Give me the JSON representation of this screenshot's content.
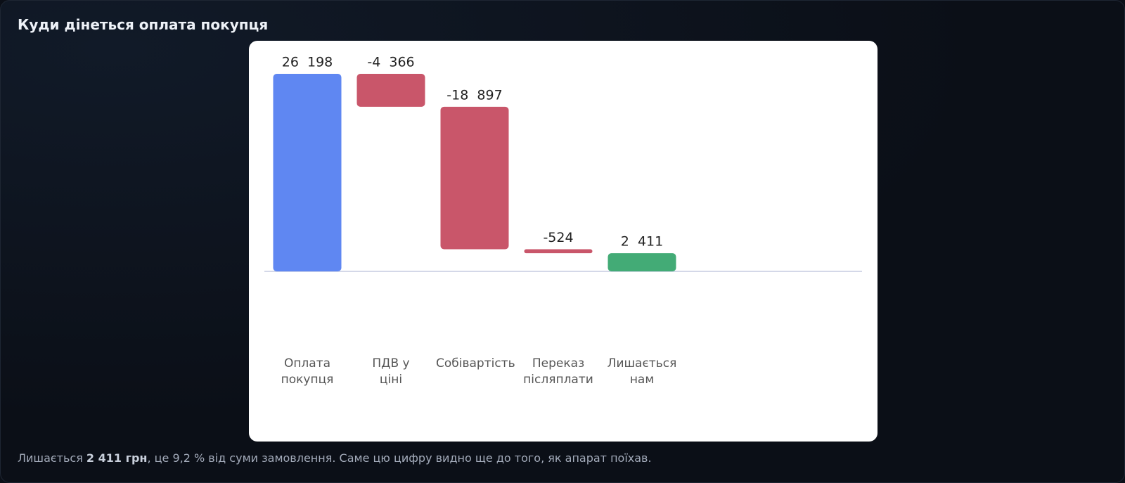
{
  "header": {
    "title": "Куди дінеться оплата покупця"
  },
  "chart_data": {
    "type": "waterfall",
    "categories": [
      "Оплата покупця",
      "ПДВ у ціні",
      "Собівартість",
      "Переказ післяплати",
      "Лишається нам"
    ],
    "values": [
      26198,
      -4366,
      -18897,
      -524,
      2411
    ],
    "value_labels": [
      "26  198",
      "-4  366",
      "-18  897",
      "-524",
      "2  411"
    ],
    "colors": [
      "#5f87f2",
      "#c9566a",
      "#c9566a",
      "#c9566a",
      "#43ab76"
    ]
  },
  "footer": {
    "prefix": "Лишається ",
    "strong": "2 411 грн",
    "suffix": ", це 9,2 % від суми замовлення. Саме цю цифру видно ще до того, як апарат поїхав."
  }
}
